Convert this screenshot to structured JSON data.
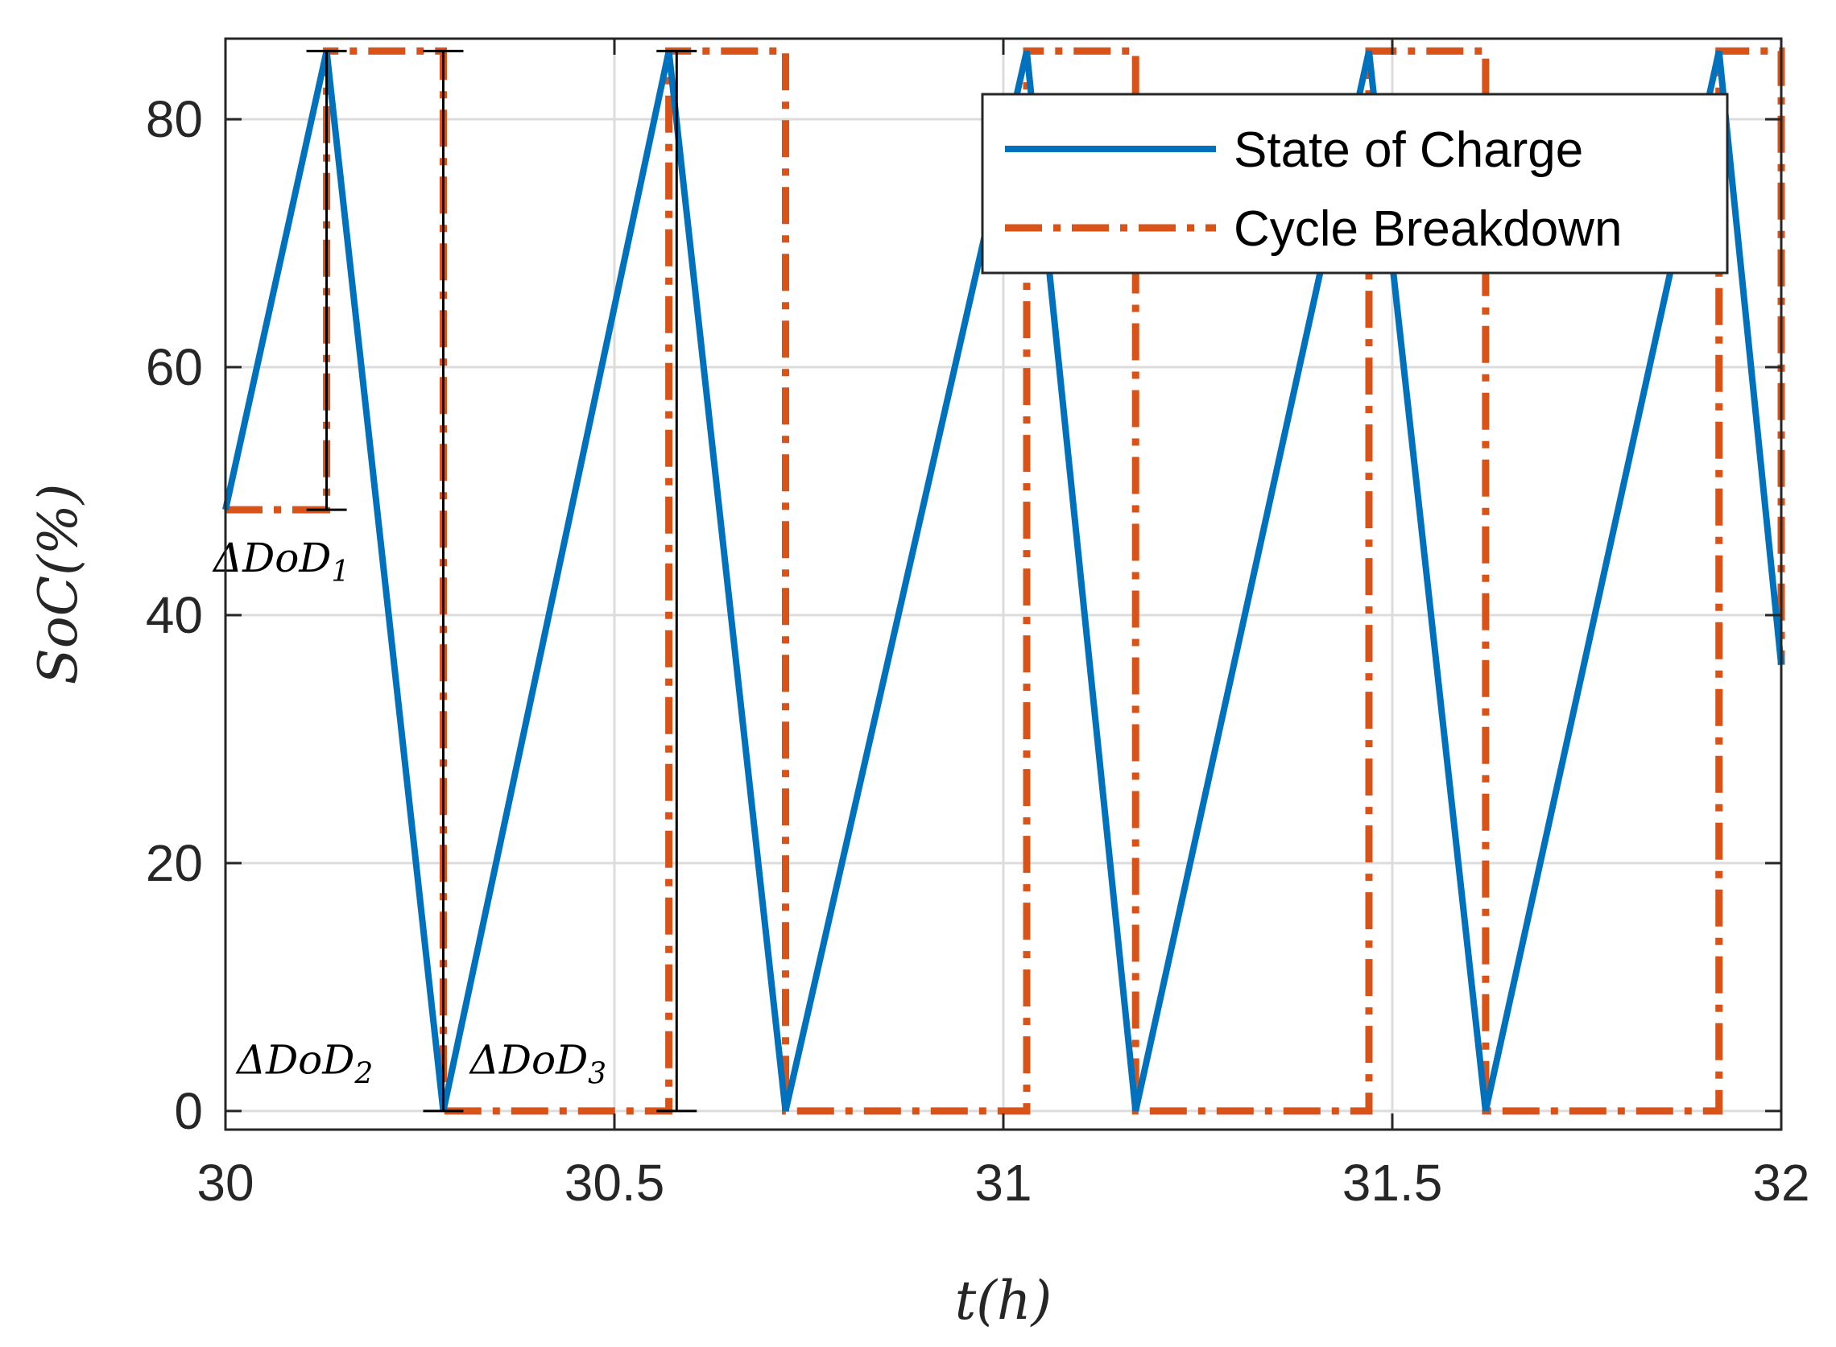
{
  "chart_data": {
    "type": "line",
    "title": "",
    "xlabel": "t(h)",
    "ylabel": "SoC(%)",
    "xlim": [
      30,
      32
    ],
    "ylim": [
      -1.5,
      86.5
    ],
    "xticks": [
      30,
      30.5,
      31,
      31.5,
      32
    ],
    "xtick_labels": [
      "30",
      "30.5",
      "31",
      "31.5",
      "32"
    ],
    "yticks": [
      0,
      20,
      40,
      60,
      80
    ],
    "ytick_labels": [
      "0",
      "20",
      "40",
      "60",
      "80"
    ],
    "grid": true,
    "legend_position": "top-right",
    "colors": {
      "soc": "#0072BD",
      "cycle": "#D95319",
      "annotation": "#000000",
      "grid": "#DCDCDC",
      "axes": "#262626"
    },
    "series": [
      {
        "name": "State of Charge",
        "style": "solid",
        "x": [
          30.0,
          30.13,
          30.28,
          30.57,
          30.72,
          31.03,
          31.17,
          31.47,
          31.62,
          31.92,
          32.0
        ],
        "y": [
          48.5,
          85.5,
          0,
          85.5,
          0,
          85.5,
          0,
          85.5,
          0,
          85.5,
          36
        ]
      },
      {
        "name": "Cycle Breakdown",
        "style": "dash-dot",
        "x": [
          30.0,
          30.13,
          30.13,
          30.28,
          30.28,
          30.28,
          30.57,
          30.57,
          30.57,
          30.72,
          30.72,
          30.72,
          31.03,
          31.03,
          31.03,
          31.17,
          31.17,
          31.17,
          31.47,
          31.47,
          31.47,
          31.62,
          31.62,
          31.62,
          31.92,
          31.92,
          31.92,
          32.0,
          32.0
        ],
        "y": [
          48.5,
          48.5,
          85.5,
          85.5,
          0,
          0,
          0,
          85.5,
          85.5,
          85.5,
          0,
          0,
          0,
          85.5,
          85.5,
          85.5,
          0,
          0,
          0,
          85.5,
          85.5,
          85.5,
          0,
          0,
          0,
          85.5,
          85.5,
          85.5,
          36
        ]
      }
    ],
    "error_bars": [
      {
        "x": 30.13,
        "y_low": 48.5,
        "y_high": 85.5,
        "label": "ΔDoD1"
      },
      {
        "x": 30.28,
        "y_low": 0,
        "y_high": 85.5,
        "label": "ΔDoD2"
      },
      {
        "x": 30.58,
        "y_low": 0,
        "y_high": 85.5,
        "label": "ΔDoD3"
      }
    ],
    "annotations": [
      {
        "label": "ΔDoD",
        "sub": "1",
        "x": 30.0,
        "y": 43.5
      },
      {
        "label": "ΔDoD",
        "sub": "2",
        "x": 30.03,
        "y": 3.0
      },
      {
        "label": "ΔDoD",
        "sub": "3",
        "x": 30.33,
        "y": 3.0
      }
    ]
  }
}
